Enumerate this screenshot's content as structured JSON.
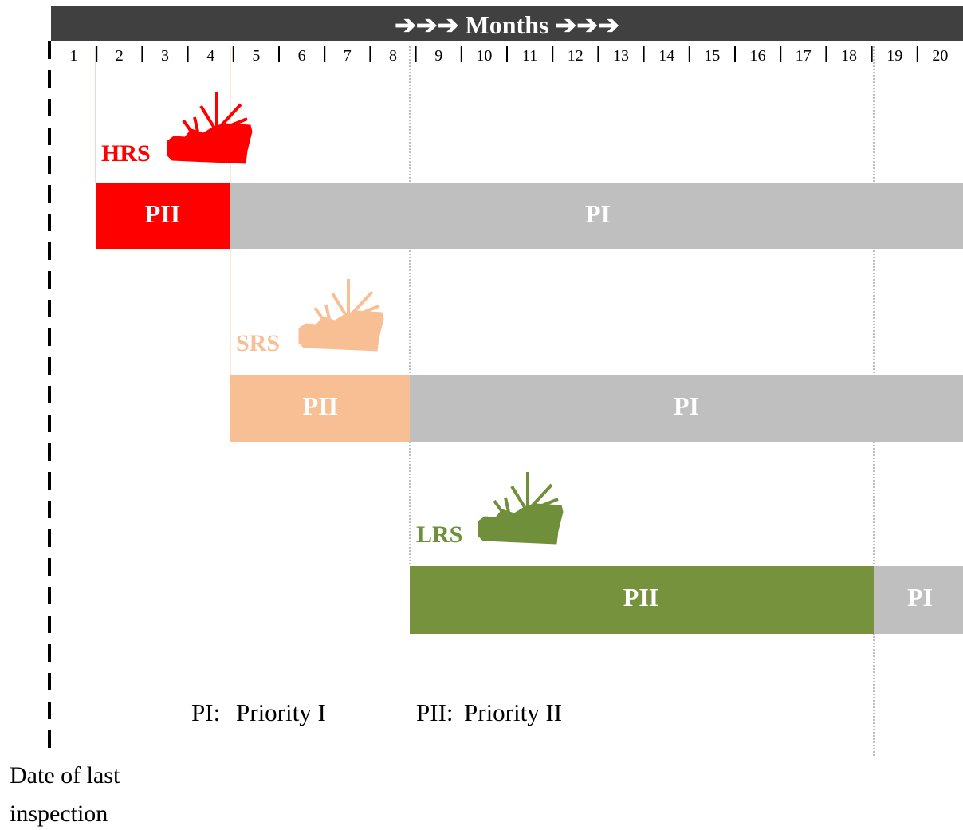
{
  "header": {
    "arrows_left": "➔➔➔",
    "title": "Months",
    "arrows_right": "➔➔➔"
  },
  "months": [
    "1",
    "2",
    "3",
    "4",
    "5",
    "6",
    "7",
    "8",
    "9",
    "10",
    "11",
    "12",
    "13",
    "14",
    "15",
    "16",
    "17",
    "18",
    "19",
    "20"
  ],
  "rows": [
    {
      "label": "HRS",
      "bars": [
        "PII",
        "PI"
      ]
    },
    {
      "label": "SRS",
      "bars": [
        "PII",
        "PI"
      ]
    },
    {
      "label": "LRS",
      "bars": [
        "PII",
        "PI"
      ]
    }
  ],
  "legend": [
    {
      "key": "PI:",
      "text": "Priority I"
    },
    {
      "key": "PII:",
      "text": "Priority II"
    }
  ],
  "footer": [
    "Date of last",
    "inspection"
  ]
}
